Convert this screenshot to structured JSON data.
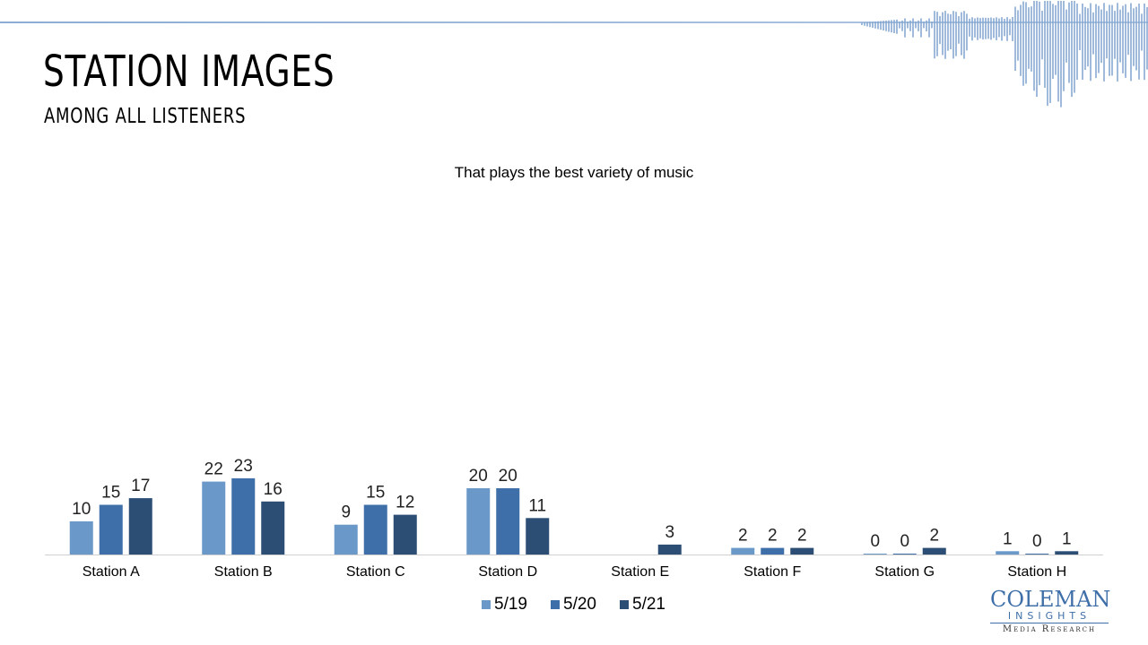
{
  "header": {
    "title": "STATION IMAGES",
    "subtitle": "AMONG ALL LISTENERS"
  },
  "chart_data": {
    "type": "bar",
    "title": "That plays the best variety of music",
    "categories": [
      "Station A",
      "Station B",
      "Station C",
      "Station D",
      "Station E",
      "Station F",
      "Station G",
      "Station H"
    ],
    "series": [
      {
        "name": "5/19",
        "values": [
          10,
          22,
          9,
          20,
          null,
          2,
          0,
          1
        ],
        "color": "#6a98c8"
      },
      {
        "name": "5/20",
        "values": [
          15,
          23,
          15,
          20,
          null,
          2,
          0,
          0
        ],
        "color": "#3f6fa8"
      },
      {
        "name": "5/21",
        "values": [
          17,
          16,
          12,
          11,
          3,
          2,
          2,
          1
        ],
        "color": "#2c4d74"
      }
    ],
    "ylim": [
      0,
      100
    ],
    "grid": false,
    "legend": "bottom"
  },
  "logo": {
    "main": "COLEMAN",
    "sub": "INSIGHTS",
    "tag": "Media Research"
  },
  "colors": {
    "accent": "#3f6fa8",
    "wave": "#7fa3cf"
  }
}
